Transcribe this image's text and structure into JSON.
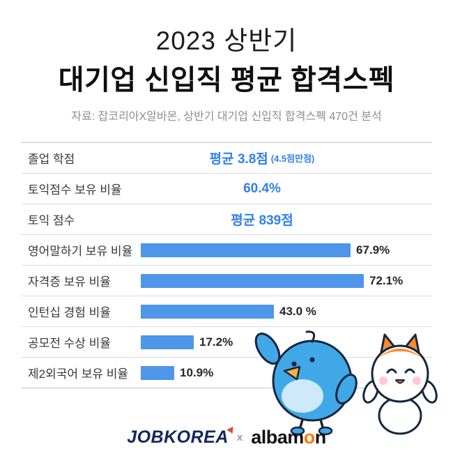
{
  "header": {
    "title_line1": "2023 상반기",
    "title_line2": "대기업 신입직 평균 합격스펙",
    "source": "자료: 잡코리아X알바몬,  상반기 대기업 신입직 합격스펙 470건 분석"
  },
  "table": {
    "rows": [
      {
        "label": "졸업 학점",
        "value": "평균 3.8점",
        "suffix": "(4.5점만점)"
      },
      {
        "label": "토익점수 보유 비율",
        "value": "60.4%"
      },
      {
        "label": "토익 점수",
        "value": "평균 839점"
      },
      {
        "label": "영어말하기 보유 비율",
        "value": 67.9,
        "display": "67.9%"
      },
      {
        "label": "자격증 보유 비율",
        "value": 72.1,
        "display": "72.1%"
      },
      {
        "label": "인턴십 경험 비율",
        "value": 43.0,
        "display": "43.0 %"
      },
      {
        "label": "공모전 수상 비율",
        "value": 17.2,
        "display": "17.2%"
      },
      {
        "label": "제2외국어 보유 비율",
        "value": 10.9,
        "display": "10.9%"
      }
    ]
  },
  "footer": {
    "logo_jobkorea": "JOBKOREA",
    "separator": "x",
    "albamon_part1": "albam",
    "albamon_part2": "o",
    "albamon_part3": "n"
  },
  "mascots": [
    "jobkorea-blue-bird",
    "albamon-orange-cat"
  ],
  "colors": {
    "value_blue": "#2f80ed",
    "bar_blue": "#4e96e9",
    "jobkorea_navy": "#15265b",
    "albamon_orange": "#ff7a00"
  },
  "chart_data": {
    "type": "bar",
    "title": "2023 상반기 대기업 신입직 평균 합격스펙",
    "subtitle": "자료: 잡코리아X알바몬,  상반기 대기업 신입직 합격스펙 470건 분석",
    "orientation": "horizontal",
    "categories": [
      "영어말하기 보유 비율",
      "자격증 보유 비율",
      "인턴십 경험 비율",
      "공모전 수상 비율",
      "제2외국어 보유 비율"
    ],
    "values": [
      67.9,
      72.1,
      43.0,
      17.2,
      10.9
    ],
    "unit": "%",
    "xlim": [
      0,
      100
    ],
    "grid": false,
    "legend": false,
    "bar_color": "#4e96e9",
    "extra_stats": [
      {
        "label": "졸업 학점",
        "value": "평균 3.8점",
        "note": "(4.5점만점)"
      },
      {
        "label": "토익점수 보유 비율",
        "value": "60.4%"
      },
      {
        "label": "토익 점수",
        "value": "평균 839점"
      }
    ]
  }
}
